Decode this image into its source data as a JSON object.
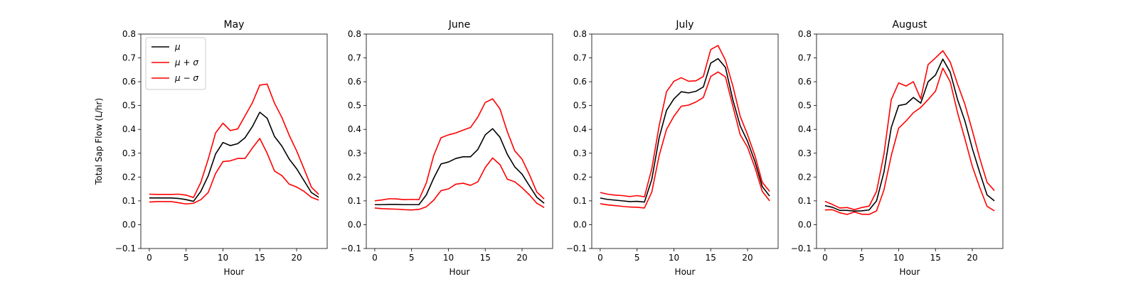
{
  "figure": {
    "ylabel": "Total Sap Flow (L/hr)",
    "xlabel": "Hour",
    "colors": {
      "mean": "#000000",
      "upper": "#ff0000",
      "lower": "#ff0000"
    },
    "legend": {
      "placement": "upper-left",
      "entries": [
        "μ",
        "μ + σ",
        "μ − σ"
      ]
    }
  },
  "chart_data": [
    {
      "type": "line",
      "title": "May",
      "xlabel": "Hour",
      "ylabel": "Total Sap Flow (L/hr)",
      "xlim": [
        -1.15,
        24.15
      ],
      "ylim": [
        -0.1,
        0.8
      ],
      "xticks": [
        0,
        5,
        10,
        15,
        20
      ],
      "yticks": [
        -0.1,
        0.0,
        0.1,
        0.2,
        0.3,
        0.4,
        0.5,
        0.6,
        0.7,
        0.8
      ],
      "x": [
        0,
        1,
        2,
        3,
        4,
        5,
        6,
        7,
        8,
        9,
        10,
        11,
        12,
        13,
        14,
        15,
        16,
        17,
        18,
        19,
        20,
        21,
        22,
        23
      ],
      "series": [
        {
          "name": "μ",
          "key": "mean",
          "values": [
            0.112,
            0.112,
            0.112,
            0.112,
            0.11,
            0.105,
            0.098,
            0.14,
            0.205,
            0.297,
            0.345,
            0.332,
            0.34,
            0.365,
            0.412,
            0.472,
            0.447,
            0.37,
            0.33,
            0.275,
            0.235,
            0.185,
            0.135,
            0.115
          ]
        },
        {
          "name": "μ + σ",
          "key": "upper",
          "values": [
            0.128,
            0.127,
            0.127,
            0.127,
            0.128,
            0.124,
            0.114,
            0.178,
            0.275,
            0.385,
            0.426,
            0.395,
            0.402,
            0.457,
            0.512,
            0.586,
            0.59,
            0.51,
            0.45,
            0.375,
            0.31,
            0.235,
            0.158,
            0.127
          ]
        },
        {
          "name": "μ − σ",
          "key": "lower",
          "values": [
            0.095,
            0.097,
            0.097,
            0.097,
            0.092,
            0.087,
            0.09,
            0.105,
            0.135,
            0.215,
            0.265,
            0.268,
            0.278,
            0.278,
            0.322,
            0.362,
            0.3,
            0.225,
            0.206,
            0.17,
            0.158,
            0.14,
            0.115,
            0.103
          ]
        }
      ]
    },
    {
      "type": "line",
      "title": "June",
      "xlabel": "Hour",
      "ylim": [
        -0.1,
        0.8
      ],
      "xlim": [
        -1.15,
        24.15
      ],
      "xticks": [
        0,
        5,
        10,
        15,
        20
      ],
      "yticks": [
        -0.1,
        0.0,
        0.1,
        0.2,
        0.3,
        0.4,
        0.5,
        0.6,
        0.7,
        0.8
      ],
      "x": [
        0,
        1,
        2,
        3,
        4,
        5,
        6,
        7,
        8,
        9,
        10,
        11,
        12,
        13,
        14,
        15,
        16,
        17,
        18,
        19,
        20,
        21,
        22,
        23
      ],
      "series": [
        {
          "name": "μ",
          "key": "mean",
          "values": [
            0.084,
            0.084,
            0.085,
            0.085,
            0.084,
            0.084,
            0.084,
            0.125,
            0.195,
            0.255,
            0.263,
            0.278,
            0.285,
            0.285,
            0.316,
            0.377,
            0.403,
            0.367,
            0.295,
            0.243,
            0.212,
            0.163,
            0.115,
            0.09
          ]
        },
        {
          "name": "μ + σ",
          "key": "upper",
          "values": [
            0.1,
            0.104,
            0.109,
            0.108,
            0.105,
            0.106,
            0.105,
            0.175,
            0.29,
            0.365,
            0.377,
            0.385,
            0.397,
            0.408,
            0.452,
            0.513,
            0.528,
            0.486,
            0.39,
            0.31,
            0.275,
            0.21,
            0.137,
            0.108
          ]
        },
        {
          "name": "μ − σ",
          "key": "lower",
          "values": [
            0.07,
            0.067,
            0.066,
            0.065,
            0.063,
            0.062,
            0.064,
            0.075,
            0.103,
            0.143,
            0.15,
            0.17,
            0.174,
            0.165,
            0.18,
            0.24,
            0.28,
            0.252,
            0.191,
            0.18,
            0.155,
            0.125,
            0.09,
            0.072
          ]
        }
      ]
    },
    {
      "type": "line",
      "title": "July",
      "xlabel": "Hour",
      "ylim": [
        -0.1,
        0.8
      ],
      "xlim": [
        -1.15,
        24.15
      ],
      "xticks": [
        0,
        5,
        10,
        15,
        20
      ],
      "yticks": [
        -0.1,
        0.0,
        0.1,
        0.2,
        0.3,
        0.4,
        0.5,
        0.6,
        0.7,
        0.8
      ],
      "x": [
        0,
        1,
        2,
        3,
        4,
        5,
        6,
        7,
        8,
        9,
        10,
        11,
        12,
        13,
        14,
        15,
        16,
        17,
        18,
        19,
        20,
        21,
        22,
        23
      ],
      "series": [
        {
          "name": "μ",
          "key": "mean",
          "values": [
            0.112,
            0.106,
            0.103,
            0.1,
            0.097,
            0.098,
            0.095,
            0.19,
            0.365,
            0.48,
            0.528,
            0.558,
            0.553,
            0.56,
            0.578,
            0.678,
            0.697,
            0.66,
            0.525,
            0.415,
            0.35,
            0.265,
            0.16,
            0.12
          ]
        },
        {
          "name": "μ + σ",
          "key": "upper",
          "values": [
            0.135,
            0.128,
            0.124,
            0.122,
            0.118,
            0.122,
            0.117,
            0.235,
            0.415,
            0.558,
            0.602,
            0.617,
            0.602,
            0.604,
            0.622,
            0.735,
            0.752,
            0.69,
            0.583,
            0.455,
            0.378,
            0.29,
            0.178,
            0.14
          ]
        },
        {
          "name": "μ − σ",
          "key": "lower",
          "values": [
            0.088,
            0.083,
            0.08,
            0.077,
            0.074,
            0.073,
            0.07,
            0.137,
            0.29,
            0.4,
            0.455,
            0.497,
            0.502,
            0.515,
            0.534,
            0.622,
            0.641,
            0.62,
            0.498,
            0.378,
            0.325,
            0.24,
            0.14,
            0.1
          ]
        }
      ]
    },
    {
      "type": "line",
      "title": "August",
      "xlabel": "Hour",
      "ylim": [
        -0.1,
        0.8
      ],
      "xlim": [
        -1.15,
        24.15
      ],
      "xticks": [
        0,
        5,
        10,
        15,
        20
      ],
      "yticks": [
        -0.1,
        0.0,
        0.1,
        0.2,
        0.3,
        0.4,
        0.5,
        0.6,
        0.7,
        0.8
      ],
      "x": [
        0,
        1,
        2,
        3,
        4,
        5,
        6,
        7,
        8,
        9,
        10,
        11,
        12,
        13,
        14,
        15,
        16,
        17,
        18,
        19,
        20,
        21,
        22,
        23
      ],
      "series": [
        {
          "name": "μ",
          "key": "mean",
          "values": [
            0.08,
            0.073,
            0.06,
            0.06,
            0.057,
            0.058,
            0.062,
            0.1,
            0.22,
            0.408,
            0.5,
            0.506,
            0.534,
            0.51,
            0.6,
            0.628,
            0.695,
            0.64,
            0.525,
            0.435,
            0.32,
            0.22,
            0.125,
            0.1
          ]
        },
        {
          "name": "μ + σ",
          "key": "upper",
          "values": [
            0.098,
            0.085,
            0.07,
            0.072,
            0.063,
            0.072,
            0.078,
            0.14,
            0.295,
            0.525,
            0.595,
            0.582,
            0.6,
            0.528,
            0.672,
            0.7,
            0.73,
            0.683,
            0.59,
            0.505,
            0.395,
            0.28,
            0.178,
            0.143
          ]
        },
        {
          "name": "μ − σ",
          "key": "lower",
          "values": [
            0.062,
            0.063,
            0.05,
            0.043,
            0.053,
            0.044,
            0.043,
            0.058,
            0.145,
            0.29,
            0.405,
            0.435,
            0.47,
            0.492,
            0.525,
            0.56,
            0.657,
            0.6,
            0.47,
            0.36,
            0.245,
            0.157,
            0.077,
            0.058
          ]
        }
      ]
    }
  ]
}
